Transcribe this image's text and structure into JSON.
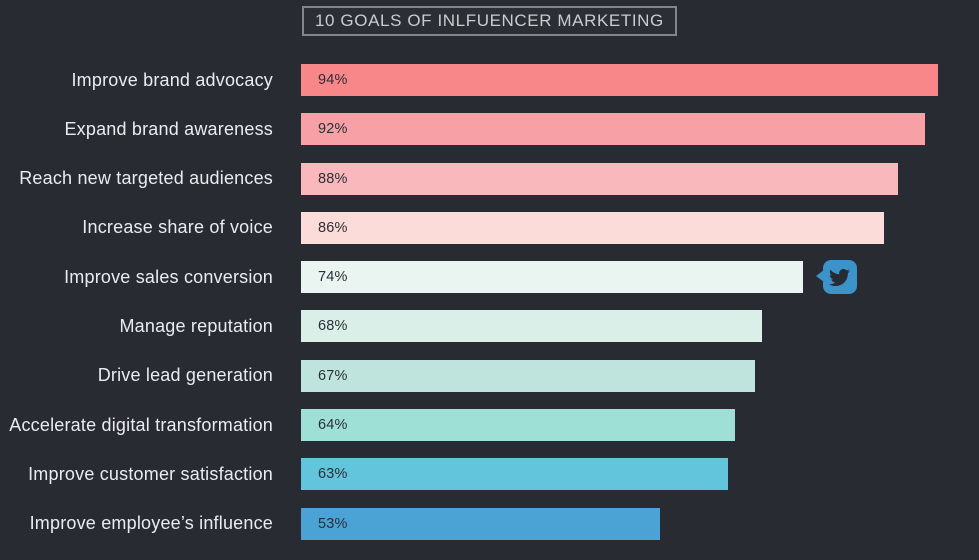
{
  "page": {
    "background": "#282b32"
  },
  "title": {
    "text": "10 GOALS OF INLFUENCER MARKETING",
    "color": "#c9cdce",
    "border_color": "#818689"
  },
  "chart_data": {
    "type": "bar",
    "orientation": "horizontal",
    "title": "10 GOALS OF INLFUENCER MARKETING",
    "unit": "%",
    "xlim": [
      0,
      100
    ],
    "grid": false,
    "legend": false,
    "value_labels": "inside-bar-left",
    "categories": [
      "Improve brand advocacy",
      "Expand brand awareness",
      "Reach new targeted audiences",
      "Increase share of voice",
      "Improve sales conversion",
      "Manage reputation",
      "Drive lead generation",
      "Accelerate digital transformation",
      "Improve customer satisfaction",
      "Improve employee’s influence"
    ],
    "values": [
      94,
      92,
      88,
      86,
      74,
      68,
      67,
      64,
      63,
      53
    ],
    "value_labels_text": [
      "94%",
      "92%",
      "88%",
      "86%",
      "74%",
      "68%",
      "67%",
      "64%",
      "63%",
      "53%"
    ],
    "bar_colors": [
      "#f8878a",
      "#f7a0a5",
      "#f9b8bc",
      "#fbdcd9",
      "#eaf4f1",
      "#d9efe7",
      "#bee4dd",
      "#9fe0d6",
      "#62c5dc",
      "#4aa3d4"
    ],
    "category_label_color": "#e9ecef",
    "value_label_color": "#2b2e36",
    "annotation": {
      "icon": "twitter-icon",
      "attached_to_category_index": 4,
      "badge_color": "#3b93c9",
      "bird_color": "#272b33"
    }
  }
}
